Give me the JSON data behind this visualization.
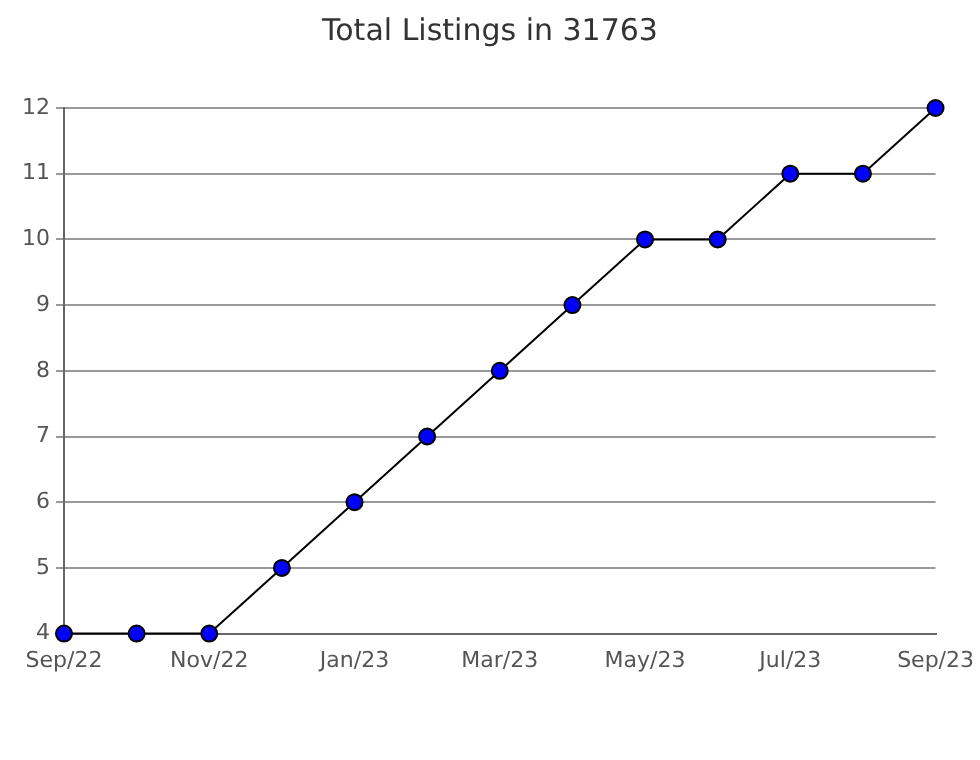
{
  "chart_data": {
    "type": "line",
    "title": "Total Listings in 31763",
    "categories": [
      "Sep/22",
      null,
      "Nov/22",
      null,
      "Jan/23",
      null,
      "Mar/23",
      null,
      "May/23",
      null,
      "Jul/23",
      null,
      "Sep/23"
    ],
    "series": [
      {
        "color": "#0000ff",
        "values": [
          4,
          4,
          4,
          5,
          6,
          7,
          8,
          9,
          10,
          10,
          11,
          11,
          12
        ]
      }
    ],
    "ylim": [
      4,
      12
    ],
    "yticks": [
      4,
      5,
      6,
      7,
      8,
      9,
      10,
      11,
      12
    ],
    "grid": "y",
    "legend": false,
    "marker": "circle",
    "line_style": "solid"
  }
}
